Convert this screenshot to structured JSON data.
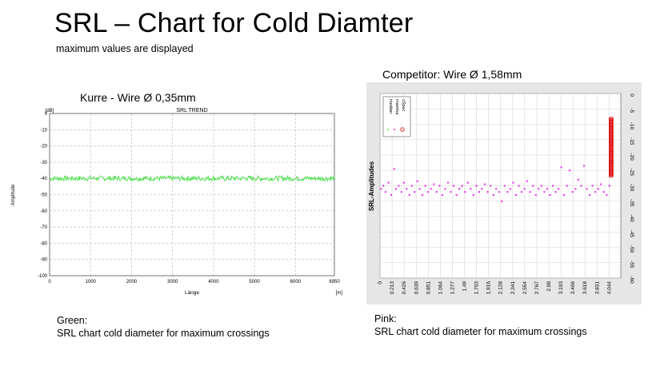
{
  "slide": {
    "title": "SRL – Chart for Cold Diamter",
    "subtitle": "maximum values are displayed"
  },
  "left": {
    "heading": "Kurre - Wire Ø 0,35mm",
    "caption_title": "Green:",
    "caption_text": "SRL chart cold diameter for maximum crossings"
  },
  "right": {
    "heading": "Competitor: Wire Ø 1,58mm",
    "caption_title": "Pink:",
    "caption_text": "SRL chart cold diameter for maximum crossings"
  },
  "chart_data": [
    {
      "type": "line",
      "title": "SRL TREND",
      "xlabel": "Länge",
      "x_unit": "[m]",
      "ylabel": "Amplitude",
      "y_unit": "[dB]",
      "xlim": [
        0,
        6950
      ],
      "ylim": [
        -100,
        0
      ],
      "x_ticks": [
        0,
        1000,
        2000,
        3000,
        4000,
        5000,
        6000,
        6950
      ],
      "y_ticks": [
        0,
        -10,
        -20,
        -30,
        -40,
        -50,
        -60,
        -70,
        -80,
        -90,
        -100
      ],
      "grid": true,
      "series": [
        {
          "name": "maximum",
          "color": "#33dd33",
          "mean": -40,
          "spread": 2,
          "x_start": 0,
          "x_end": 6950
        }
      ]
    },
    {
      "type": "scatter",
      "ylabel": "SRL-Amplitudes",
      "ylim": [
        -60,
        0
      ],
      "y_axis_side": "right",
      "y_ticks": [
        0,
        -5,
        -10,
        -15,
        -20,
        -25,
        -30,
        -35,
        -40,
        -45,
        -50,
        -55,
        -60
      ],
      "x_tick_labels": [
        "0",
        "0.213",
        "0.426",
        "0.639",
        "0.851",
        "1.064",
        "1.277",
        "1.49",
        "1.703",
        "1.916",
        "2.128",
        "2.341",
        "2.554",
        "2.767",
        "2.98",
        "3.193",
        "3.406",
        "3.618",
        "3.831",
        "4.044"
      ],
      "xlim": [
        0,
        4.25
      ],
      "grid": true,
      "legend": {
        "position": "top-left",
        "entries": [
          {
            "name": "median",
            "color": "#33cc33"
          },
          {
            "name": "maxima",
            "color": "#ee22ee"
          },
          {
            "name": "xSpec",
            "color": "#dd0000"
          }
        ]
      },
      "series": [
        {
          "name": "maxima",
          "color": "#ee22ee",
          "points": [
            [
              0.02,
              -31
            ],
            [
              0.06,
              -30
            ],
            [
              0.1,
              -32
            ],
            [
              0.15,
              -29
            ],
            [
              0.2,
              -33
            ],
            [
              0.25,
              -24.5
            ],
            [
              0.28,
              -31
            ],
            [
              0.33,
              -30
            ],
            [
              0.38,
              -32
            ],
            [
              0.42,
              -29
            ],
            [
              0.47,
              -31
            ],
            [
              0.52,
              -33
            ],
            [
              0.56,
              -30
            ],
            [
              0.61,
              -32
            ],
            [
              0.66,
              -28.5
            ],
            [
              0.7,
              -31
            ],
            [
              0.75,
              -33
            ],
            [
              0.8,
              -30
            ],
            [
              0.85,
              -32
            ],
            [
              0.9,
              -31
            ],
            [
              0.95,
              -29.5
            ],
            [
              1.0,
              -32
            ],
            [
              1.05,
              -30
            ],
            [
              1.1,
              -33
            ],
            [
              1.15,
              -31
            ],
            [
              1.2,
              -29
            ],
            [
              1.25,
              -32
            ],
            [
              1.3,
              -30
            ],
            [
              1.35,
              -33
            ],
            [
              1.4,
              -31
            ],
            [
              1.45,
              -30
            ],
            [
              1.5,
              -32
            ],
            [
              1.55,
              -29
            ],
            [
              1.6,
              -31
            ],
            [
              1.65,
              -33
            ],
            [
              1.7,
              -30
            ],
            [
              1.75,
              -32
            ],
            [
              1.8,
              -31
            ],
            [
              1.85,
              -29.5
            ],
            [
              1.9,
              -32
            ],
            [
              1.95,
              -30
            ],
            [
              2.0,
              -33
            ],
            [
              2.05,
              -31
            ],
            [
              2.1,
              -32
            ],
            [
              2.15,
              -35
            ],
            [
              2.2,
              -30
            ],
            [
              2.25,
              -32
            ],
            [
              2.3,
              -31
            ],
            [
              2.35,
              -29
            ],
            [
              2.4,
              -33
            ],
            [
              2.45,
              -30
            ],
            [
              2.5,
              -32
            ],
            [
              2.55,
              -31
            ],
            [
              2.6,
              -28.5
            ],
            [
              2.65,
              -32
            ],
            [
              2.7,
              -30
            ],
            [
              2.75,
              -33
            ],
            [
              2.8,
              -31
            ],
            [
              2.85,
              -30
            ],
            [
              2.9,
              -32
            ],
            [
              2.95,
              -31
            ],
            [
              3.0,
              -33
            ],
            [
              3.05,
              -30
            ],
            [
              3.1,
              -32
            ],
            [
              3.15,
              -31
            ],
            [
              3.2,
              -24
            ],
            [
              3.25,
              -33
            ],
            [
              3.3,
              -30
            ],
            [
              3.35,
              -25
            ],
            [
              3.4,
              -32
            ],
            [
              3.45,
              -31
            ],
            [
              3.5,
              -28
            ],
            [
              3.55,
              -30
            ],
            [
              3.6,
              -23.5
            ],
            [
              3.65,
              -31
            ],
            [
              3.7,
              -33
            ],
            [
              3.75,
              -30
            ],
            [
              3.8,
              -32
            ],
            [
              3.85,
              -31
            ],
            [
              3.9,
              -29.5
            ],
            [
              3.95,
              -32
            ],
            [
              4.0,
              -33
            ],
            [
              4.05,
              -30
            ]
          ]
        },
        {
          "name": "xSpec",
          "color": "#dd0000",
          "x": 4.08,
          "y_from": -8,
          "y_to": -27
        }
      ]
    }
  ]
}
